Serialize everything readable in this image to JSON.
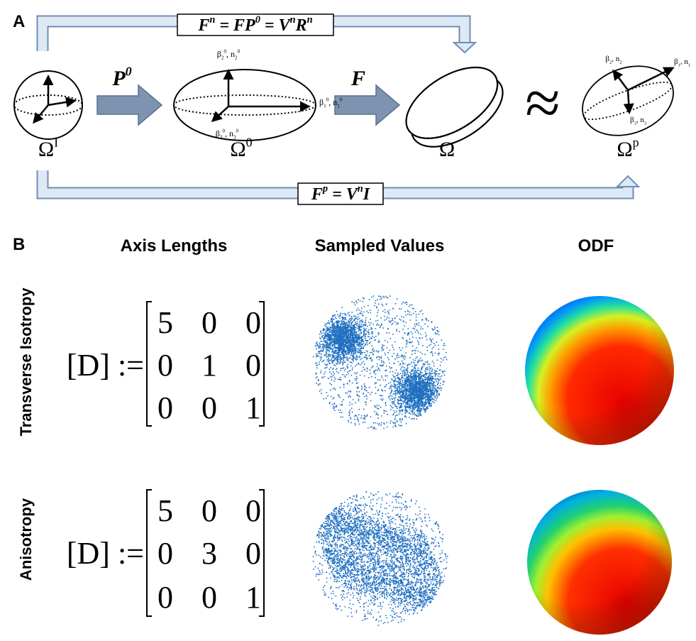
{
  "panel_a": {
    "label": "A",
    "top_equation": [
      {
        "t": "F",
        "s": "n"
      },
      {
        "t": " = FP",
        "s": "0"
      },
      {
        "t": " = V",
        "s": "n"
      },
      {
        "t": "R",
        "s": "n"
      }
    ],
    "bottom_equation": [
      {
        "t": "F",
        "s": "p"
      },
      {
        "t": " = V",
        "s": "n"
      },
      {
        "t": "I"
      }
    ],
    "arrow_1_label": [
      {
        "t": "P",
        "s": "0"
      }
    ],
    "arrow_2_label": [
      {
        "t": "F"
      }
    ],
    "approx": "≈",
    "omega_i": [
      {
        "t": "Ω",
        "s": "I"
      }
    ],
    "omega_0": [
      {
        "t": "Ω",
        "s": "0"
      }
    ],
    "omega": [
      {
        "t": "Ω"
      }
    ],
    "omega_p": [
      {
        "t": "Ω",
        "s": "p"
      }
    ],
    "omega_0_axes": [
      [
        {
          "t": "β",
          "sub": "2",
          "s": "0"
        },
        {
          "t": ", n",
          "sub": "2",
          "s": "0"
        }
      ],
      [
        {
          "t": "β",
          "sub": "1",
          "s": "0"
        },
        {
          "t": ", n",
          "sub": "1",
          "s": "0"
        }
      ],
      [
        {
          "t": "β",
          "sub": "3",
          "s": "0"
        },
        {
          "t": ", n",
          "sub": "3",
          "s": "0"
        }
      ]
    ],
    "omega_p_axes": [
      [
        {
          "t": "β",
          "sub": "2"
        },
        {
          "t": ", n",
          "sub": "2"
        }
      ],
      [
        {
          "t": "β",
          "sub": "1"
        },
        {
          "t": ", n",
          "sub": "1"
        }
      ],
      [
        {
          "t": "β",
          "sub": "3"
        },
        {
          "t": ", n",
          "sub": "3"
        }
      ]
    ]
  },
  "panel_b": {
    "label": "B",
    "headers": [
      "Axis Lengths",
      "Sampled Values",
      "ODF"
    ],
    "rows": [
      {
        "label": "Transverse Isotropy",
        "prefix": "[D] :=",
        "matrix": [
          [
            5,
            0,
            0
          ],
          [
            0,
            1,
            0
          ],
          [
            0,
            0,
            1
          ]
        ]
      },
      {
        "label": "Anisotropy",
        "prefix": "[D] :=",
        "matrix": [
          [
            5,
            0,
            0
          ],
          [
            0,
            3,
            0
          ],
          [
            0,
            0,
            1
          ]
        ]
      }
    ]
  }
}
